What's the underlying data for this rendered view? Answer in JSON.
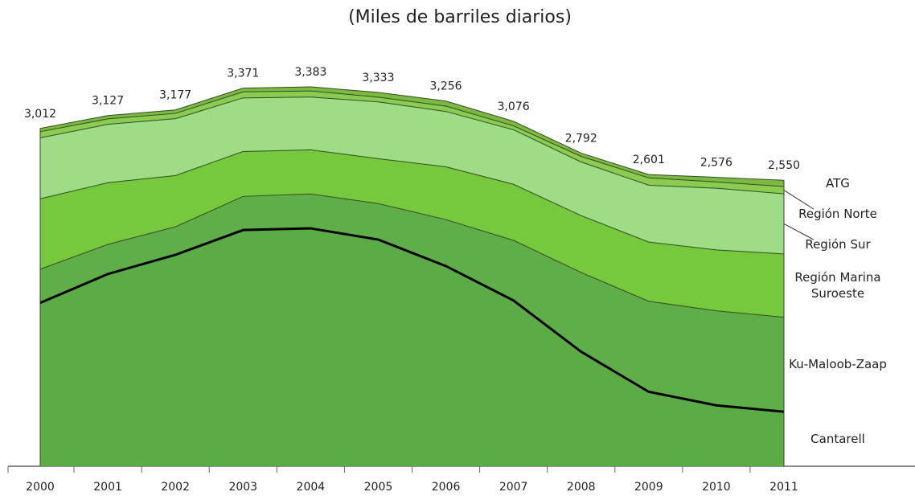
{
  "chart_data": {
    "type": "stacked_area",
    "title": "(Miles de barriles diarios)",
    "categories": [
      "2000",
      "2001",
      "2002",
      "2003",
      "2004",
      "2005",
      "2006",
      "2007",
      "2008",
      "2009",
      "2010",
      "2011"
    ],
    "series": [
      {
        "name": "Cantarell",
        "color": "#5bab47",
        "values": [
          1457,
          1714,
          1885,
          2106,
          2121,
          2021,
          1785,
          1478,
          1021,
          664,
          543,
          486
        ]
      },
      {
        "name": "Ku-Maloob-Zaap",
        "color": "#5fae49",
        "values": [
          300,
          264,
          250,
          300,
          307,
          321,
          414,
          536,
          707,
          807,
          843,
          843
        ]
      },
      {
        "name": "Región Marina Suroeste",
        "color": "#76c83d",
        "values": [
          628,
          550,
          457,
          400,
          393,
          400,
          471,
          500,
          507,
          528,
          543,
          564
        ]
      },
      {
        "name": "Región Sur",
        "color": "#9edc85",
        "values": [
          543,
          521,
          507,
          478,
          471,
          507,
          493,
          486,
          478,
          507,
          550,
          536
        ]
      },
      {
        "name": "Región Norte",
        "color": "#8ccb51",
        "values": [
          55,
          48,
          47,
          54,
          54,
          42,
          48,
          35,
          50,
          65,
          56,
          65
        ]
      },
      {
        "name": "ATG",
        "color": "#7db843",
        "values": [
          29,
          30,
          31,
          33,
          37,
          42,
          45,
          41,
          29,
          30,
          41,
          56
        ]
      }
    ],
    "totals": [
      3012,
      3127,
      3177,
      3371,
      3383,
      3333,
      3256,
      3076,
      2792,
      2601,
      2576,
      2550
    ],
    "value_labels": [
      "3,012",
      "3,127",
      "3,177",
      "3,371",
      "3,383",
      "3,333",
      "3,256",
      "3,076",
      "2,792",
      "2,601",
      "2,576",
      "2,550"
    ]
  }
}
